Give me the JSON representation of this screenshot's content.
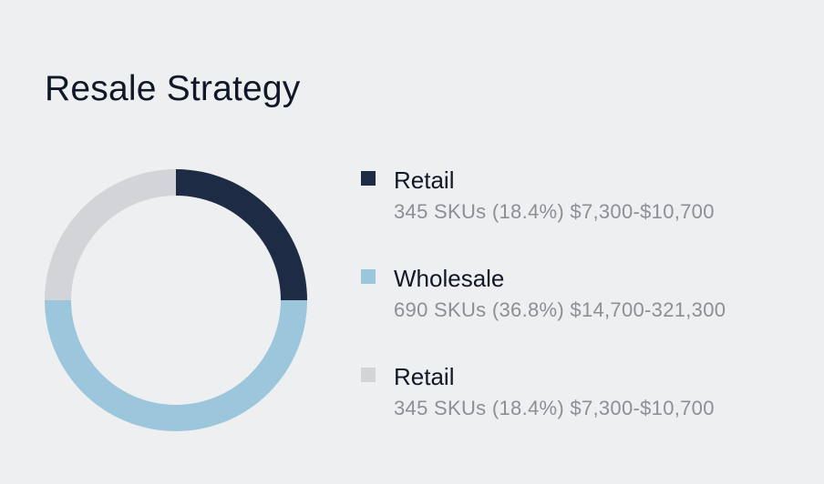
{
  "title": "Resale Strategy",
  "chart_data": {
    "type": "pie",
    "title": "Resale Strategy",
    "series": [
      {
        "name": "Retail",
        "skus": 345,
        "percent": 18.4,
        "price_range": "$7,300-$10,700",
        "detail": "345 SKUs (18.4%) $7,300-$10,700",
        "color": "#1e2b45"
      },
      {
        "name": "Wholesale",
        "skus": 690,
        "percent": 36.8,
        "price_range": "$14,700-321,300",
        "detail": "690 SKUs (36.8%) $14,700-321,300",
        "color": "#9bc6dc"
      },
      {
        "name": "Retail",
        "skus": 345,
        "percent": 18.4,
        "price_range": "$7,300-$10,700",
        "detail": "345 SKUs (18.4%) $7,300-$10,700",
        "color": "#d3d4d8"
      }
    ],
    "legend_position": "right"
  }
}
